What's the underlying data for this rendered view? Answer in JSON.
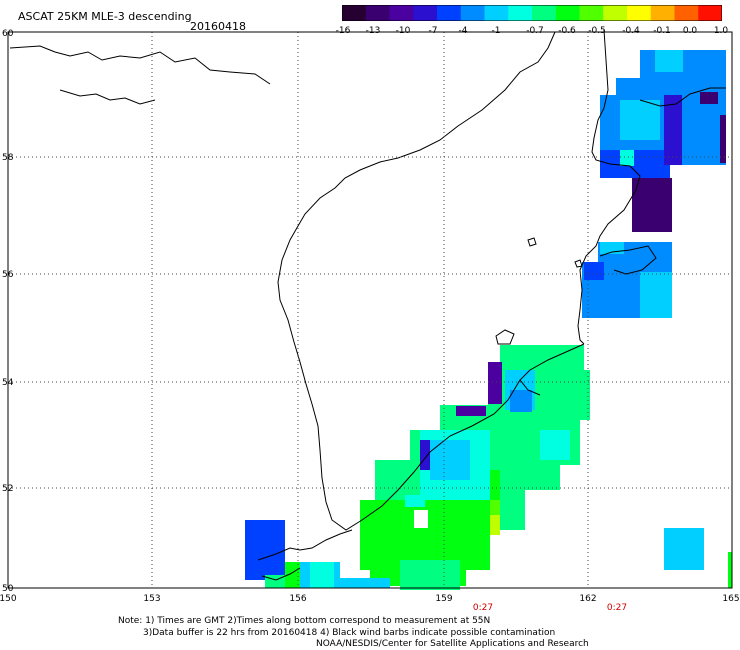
{
  "header": {
    "title": "ASCAT 25KM MLE-3 descending",
    "date": "20160418"
  },
  "colorbar": {
    "tick_labels": [
      "-16",
      "-13",
      "-10",
      "-7",
      "-4",
      "-1",
      "-0.7",
      "-0.6",
      "-0.5",
      "-0.4",
      "-0.1",
      "0.0",
      "1.0"
    ],
    "colors": [
      "#250030",
      "#3a0070",
      "#4b00a0",
      "#2b10d0",
      "#0040ff",
      "#008cff",
      "#00cfff",
      "#00ffe0",
      "#00ff80",
      "#00ff10",
      "#50ff00",
      "#c0ff00",
      "#ffff00",
      "#ffb000",
      "#ff6000",
      "#ff1000"
    ]
  },
  "map": {
    "lat_labels": [
      "60",
      "58",
      "56",
      "54",
      "52",
      "50"
    ],
    "lon_labels": [
      "150",
      "153",
      "156",
      "159",
      "162",
      "165"
    ],
    "time_labels": [
      "0:27",
      "0:27"
    ]
  },
  "notes": {
    "line1": "Note: 1) Times are GMT 2)Times along bottom correspond to measurement at 55N",
    "line2": "3)Data buffer is 22 hrs from 20160418 4) Black wind barbs indicate possible contamination",
    "line3": "NOAA/NESDIS/Center for Satellite Applications and Research"
  }
}
